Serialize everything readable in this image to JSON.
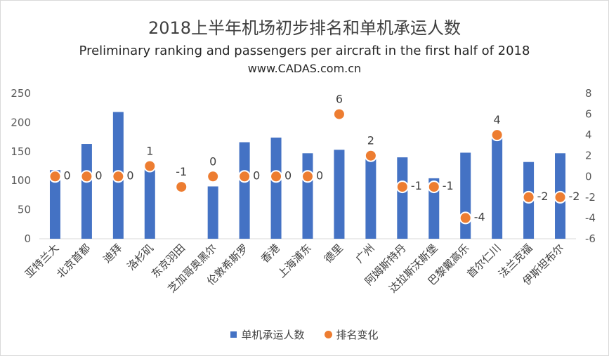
{
  "chart_data": {
    "type": "bar",
    "title": "2018上半年机场初步排名和单机承运人数",
    "subtitle": "Preliminary ranking and passengers per aircraft in the first half of 2018",
    "source": "www.CADAS.com.cn",
    "categories": [
      "亚特兰大",
      "北京首都",
      "迪拜",
      "洛杉矶",
      "东京羽田",
      "芝加哥奥黑尔",
      "伦敦希斯罗",
      "香港",
      "上海浦东",
      "德里",
      "广州",
      "阿姆斯特丹",
      "达拉斯沃斯堡",
      "巴黎戴高乐",
      "首尔仁川",
      "法兰克福",
      "伊斯坦布尔"
    ],
    "series": [
      {
        "name": "单机承运人数",
        "type": "bar",
        "axis": "left",
        "color": "#4472c4",
        "values": [
          118,
          163,
          218,
          120,
          null,
          90,
          166,
          174,
          147,
          153,
          143,
          140,
          104,
          148,
          174,
          132,
          147
        ]
      },
      {
        "name": "排名变化",
        "type": "scatter",
        "axis": "right",
        "color": "#ed7d31",
        "values": [
          0,
          0,
          0,
          1,
          -1,
          0,
          0,
          0,
          0,
          6,
          2,
          -1,
          -1,
          -4,
          4,
          -2,
          -2
        ]
      }
    ],
    "y_left": {
      "ylim": [
        0,
        250
      ],
      "ticks": [
        0,
        50,
        100,
        150,
        200,
        250
      ]
    },
    "y_right": {
      "ylim": [
        -6,
        8
      ],
      "ticks": [
        -6,
        -4,
        -2,
        0,
        2,
        4,
        6,
        8
      ]
    },
    "grid": false,
    "legend": "bottom"
  }
}
